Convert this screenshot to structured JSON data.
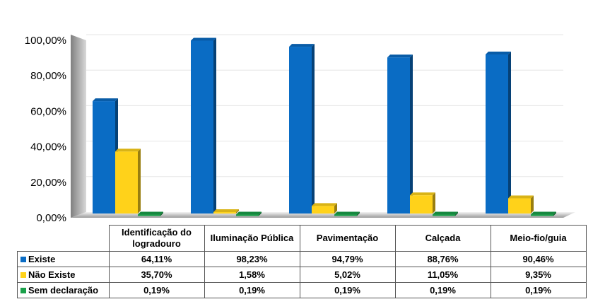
{
  "chart_data": {
    "type": "bar",
    "categories": [
      "Identificação do logradouro",
      "Iluminação Pública",
      "Pavimentação",
      "Calçada",
      "Meio-fio/guia"
    ],
    "series": [
      {
        "name": "Existe",
        "color": "#0a6cc4",
        "values": [
          64.11,
          98.23,
          94.79,
          88.76,
          90.46
        ],
        "labels": [
          "64,11%",
          "98,23%",
          "94,79%",
          "88,76%",
          "90,46%"
        ]
      },
      {
        "name": "Não Existe",
        "color": "#ffd21a",
        "values": [
          35.7,
          1.58,
          5.02,
          11.05,
          9.35
        ],
        "labels": [
          "35,70%",
          "1,58%",
          "5,02%",
          "11,05%",
          "9,35%"
        ]
      },
      {
        "name": "Sem declaração",
        "color": "#1aa04a",
        "values": [
          0.19,
          0.19,
          0.19,
          0.19,
          0.19
        ],
        "labels": [
          "0,19%",
          "0,19%",
          "0,19%",
          "0,19%",
          "0,19%"
        ]
      }
    ],
    "ylim": [
      0,
      100
    ],
    "yticks": [
      0,
      20,
      40,
      60,
      80,
      100
    ],
    "ytick_labels": [
      "0,00%",
      "20,00%",
      "40,00%",
      "60,00%",
      "80,00%",
      "100,00%"
    ],
    "grid": true,
    "legend": "data table below chart"
  }
}
